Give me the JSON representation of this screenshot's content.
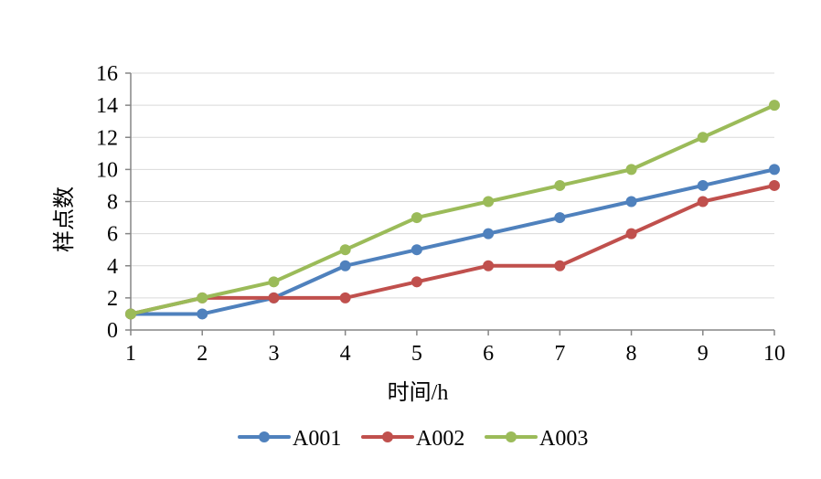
{
  "chart_data": {
    "type": "line",
    "x": [
      1,
      2,
      3,
      4,
      5,
      6,
      7,
      8,
      9,
      10
    ],
    "xlim": [
      1,
      10
    ],
    "ylim": [
      0,
      16
    ],
    "yticks": [
      0,
      2,
      4,
      6,
      8,
      10,
      12,
      14,
      16
    ],
    "xlabel": "时间/h",
    "ylabel": "样点数",
    "grid": "horizontal",
    "legend": "bottom",
    "series": [
      {
        "name": "A001",
        "color": "#4F81BD",
        "values": [
          1,
          1,
          2,
          4,
          5,
          6,
          7,
          8,
          9,
          10
        ]
      },
      {
        "name": "A002",
        "color": "#C0504D",
        "values": [
          1,
          2,
          2,
          2,
          3,
          4,
          4,
          6,
          8,
          9
        ]
      },
      {
        "name": "A003",
        "color": "#9BBB59",
        "values": [
          1,
          2,
          3,
          5,
          7,
          8,
          9,
          10,
          12,
          14
        ]
      }
    ]
  }
}
